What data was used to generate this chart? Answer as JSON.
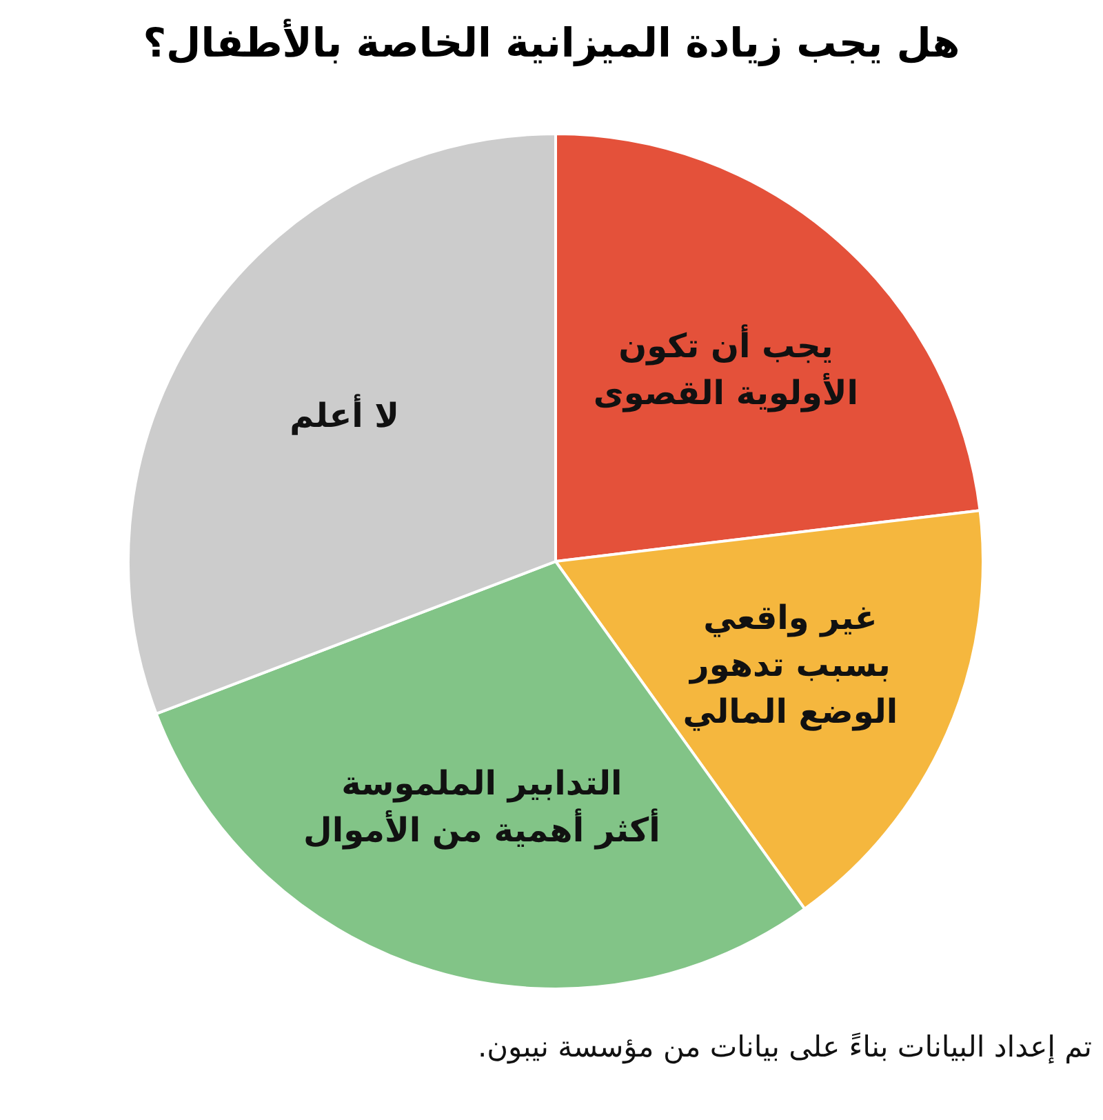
{
  "chart_data": {
    "type": "pie",
    "title": "هل يجب زيادة الميزانية الخاصة بالأطفال؟",
    "categories": [
      "يجب أن تكون\nالأولوية القصوى",
      "غير واقعي\nبسبب تدهور\nالوضع المالي",
      "التدابير الملموسة\nأكثر أهمية من الأموال",
      "لا أعلم"
    ],
    "values": [
      23.1,
      17.0,
      29.1,
      30.8
    ],
    "colors": [
      "#e4513a",
      "#f5b73e",
      "#82c487",
      "#cccccc"
    ],
    "annotations": [
      "تم إعداد البيانات بناءً على بيانات من مؤسسة نيبون."
    ]
  }
}
